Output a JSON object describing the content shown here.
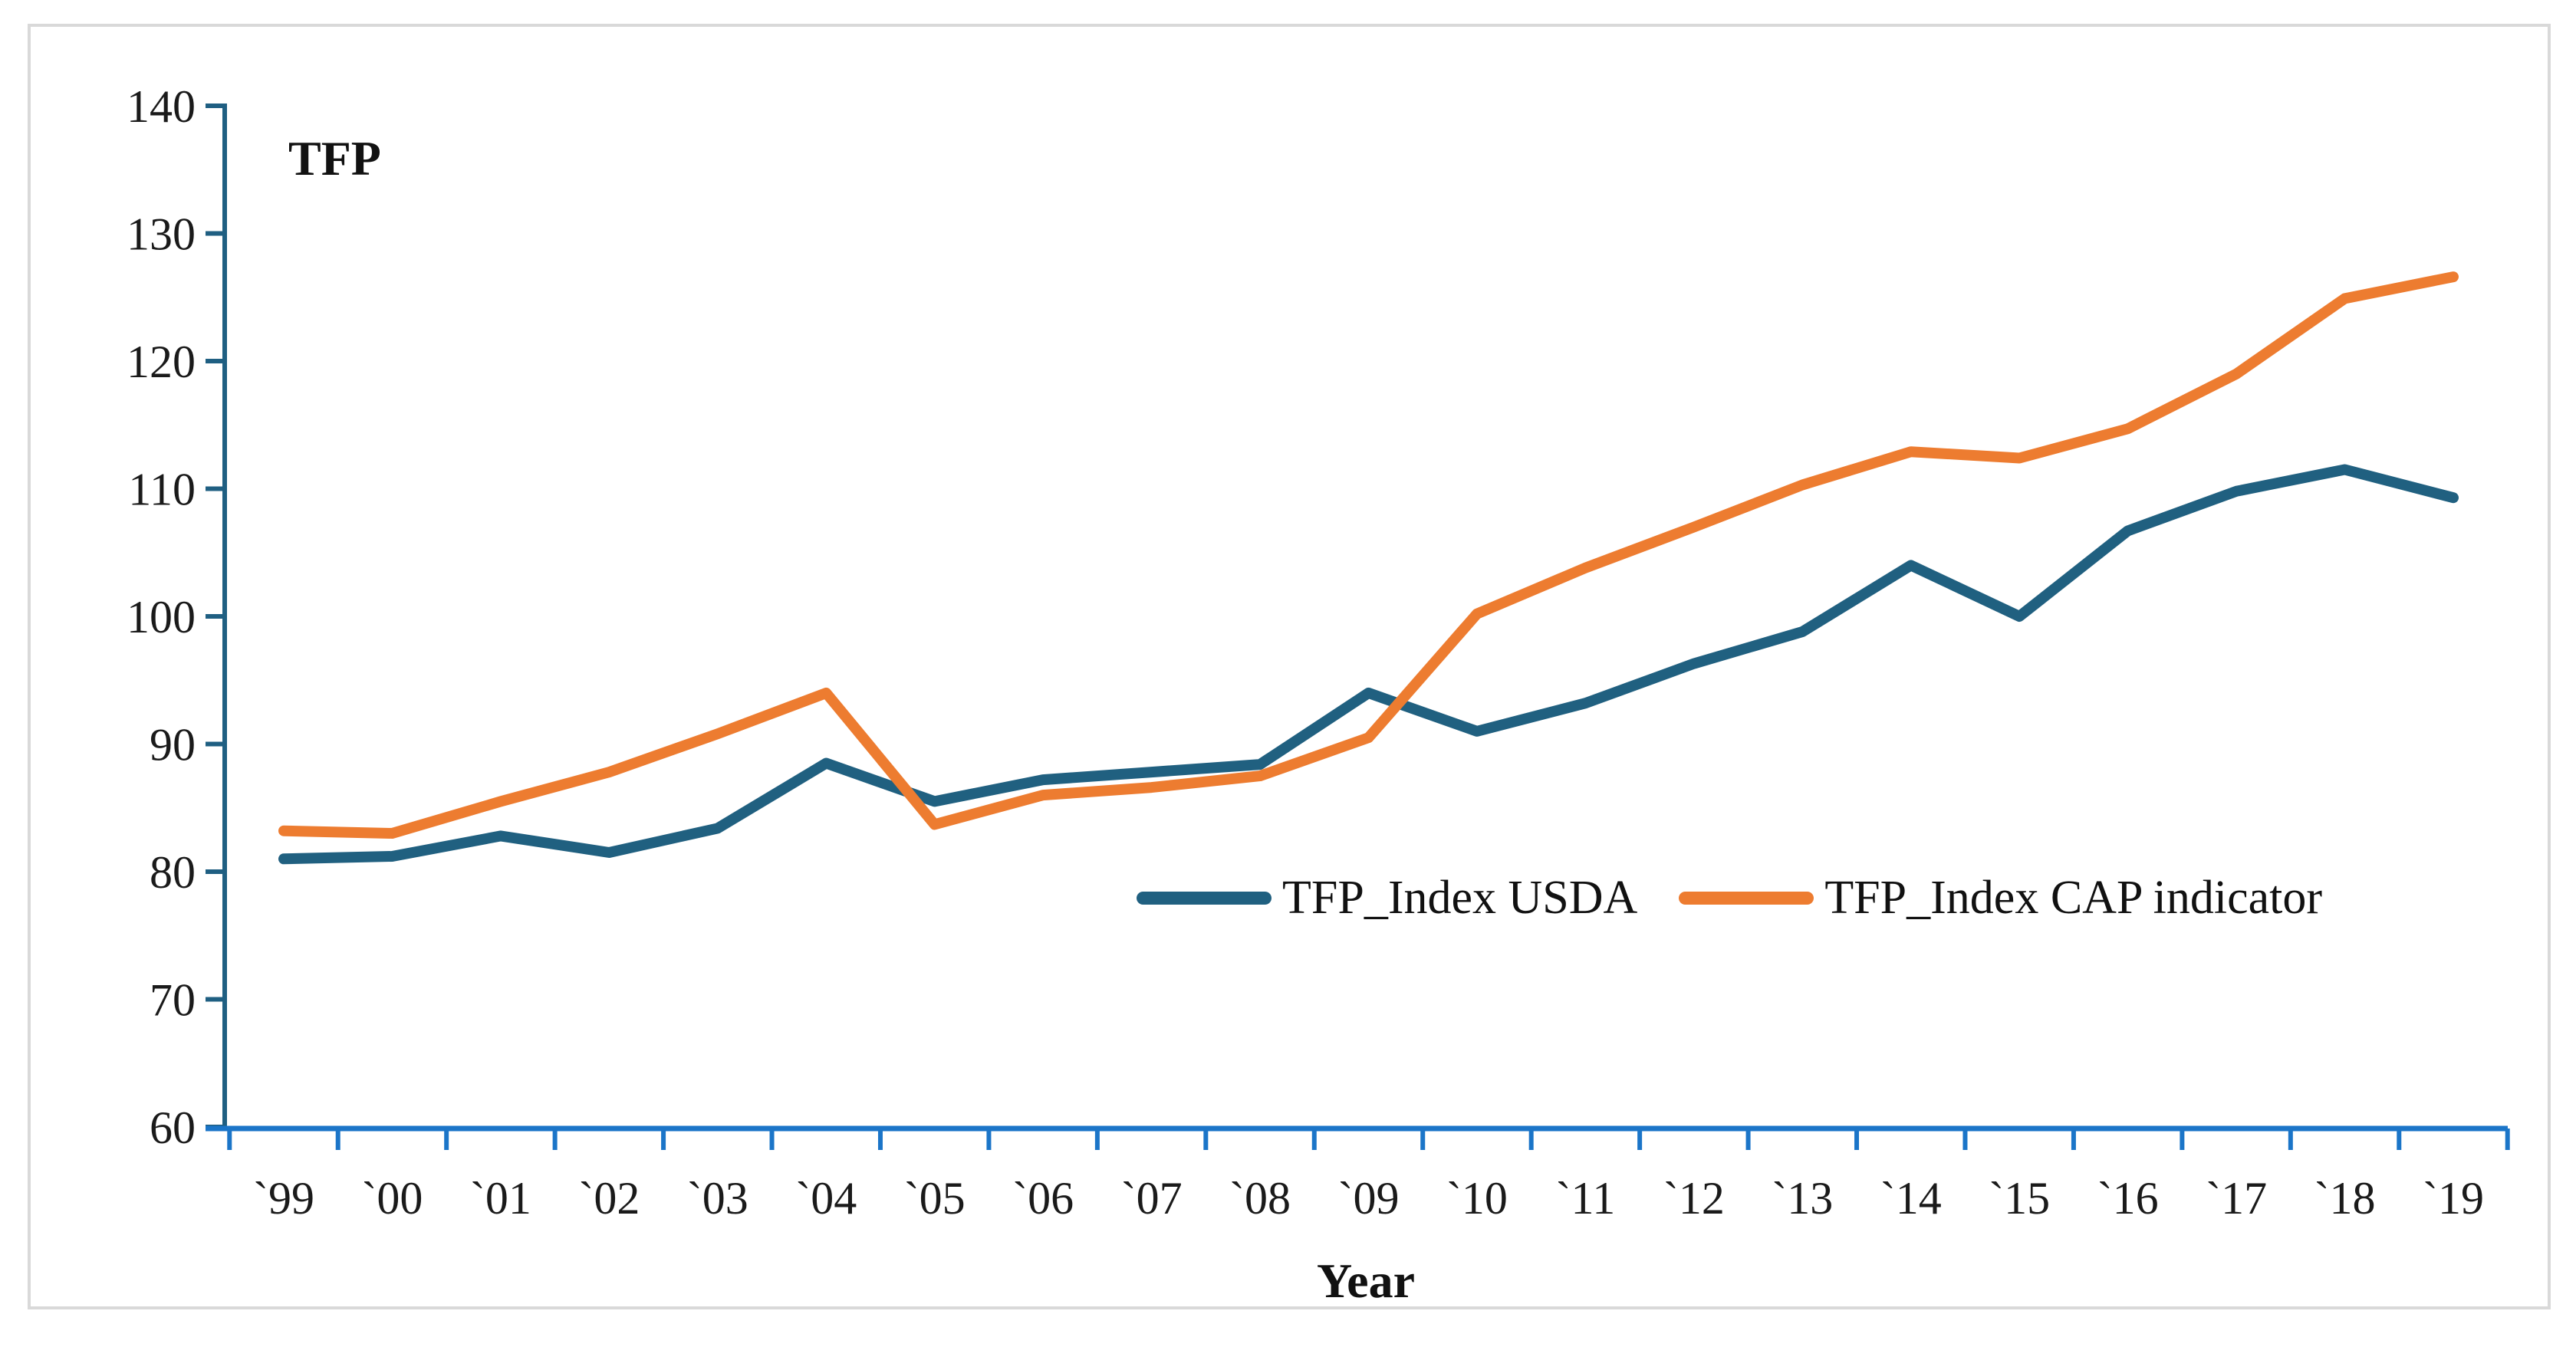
{
  "figure": {
    "y_axis_floating_title": "TFP",
    "x_axis_title": "Year"
  },
  "legend": {
    "items": [
      {
        "label": "TFP_Index USDA",
        "color": "#206080"
      },
      {
        "label": "TFP_Index CAP indicator",
        "color": "#ED7C30"
      }
    ]
  },
  "chart_data": {
    "type": "line",
    "title": "",
    "ylabel": "TFP",
    "xlabel": "Year",
    "categories": [
      "`99",
      "`00",
      "`01",
      "`02",
      "`03",
      "`04",
      "`05",
      "`06",
      "`07",
      "`08",
      "`09",
      "`10",
      "`11",
      "`12",
      "`13",
      "`14",
      "`15",
      "`16",
      "`17",
      "`18",
      "`19"
    ],
    "series": [
      {
        "name": "TFP_Index USDA",
        "color": "#206080",
        "values": [
          81,
          81.2,
          82.8,
          81.5,
          83.4,
          88.5,
          85.5,
          87.2,
          87.8,
          88.4,
          94,
          91,
          93.2,
          96.3,
          98.8,
          104,
          100,
          106.7,
          109.8,
          111.5,
          109.3
        ]
      },
      {
        "name": "TFP_Index CAP indicator",
        "color": "#ED7C30",
        "values": [
          83.2,
          83,
          85.5,
          87.8,
          90.8,
          94,
          83.7,
          86,
          86.6,
          87.5,
          90.5,
          100.2,
          103.8,
          107,
          110.3,
          112.9,
          112.4,
          114.7,
          119,
          124.9,
          126.6
        ]
      }
    ],
    "ylim": [
      60,
      140
    ],
    "y_ticks": [
      60,
      70,
      80,
      90,
      100,
      110,
      120,
      130,
      140
    ],
    "y_tick_step": 10,
    "grid": false,
    "legend_position": "inside-center-right",
    "axis_colors": {
      "x_axis": "#1B75C8",
      "y_axis": "#1F5F82"
    }
  }
}
